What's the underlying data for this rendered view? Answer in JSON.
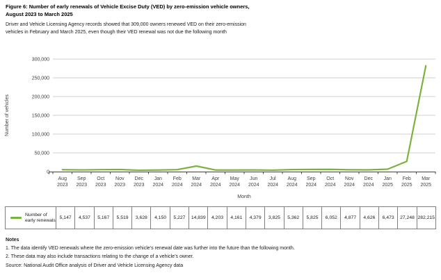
{
  "figure": {
    "title_line1": "Figure 6: Number of early renewals of Vehicle Excise Duty (VED) by zero-emission vehicle owners,",
    "title_line2": "August 2023 to March 2025",
    "subtitle_line1": "Driver and Vehicle Licensing Agency records showed that 309,000 owners renewed VED on their zero-emission",
    "subtitle_line2": "vehicles in February and March 2025, even though their VED renewal was not due the following month"
  },
  "chart_data": {
    "type": "line",
    "title": "Number of early renewals of Vehicle Excise Duty (VED) by zero-emission vehicle owners, August 2023 to March 2025",
    "categories": [
      "Aug 2023",
      "Sep 2023",
      "Oct 2023",
      "Nov 2023",
      "Dec 2023",
      "Jan 2024",
      "Feb 2024",
      "Mar 2024",
      "Apr 2024",
      "May 2024",
      "Jun 2024",
      "Jul 2024",
      "Aug 2024",
      "Sep 2024",
      "Oct 2024",
      "Nov 2024",
      "Dec 2024",
      "Jan 2025",
      "Feb 2025",
      "Mar 2025"
    ],
    "series": [
      {
        "name": "Number of early renewals",
        "values": [
          5147,
          4537,
          5167,
          5519,
          3628,
          4150,
          5227,
          14839,
          4203,
          4161,
          4379,
          3825,
          5362,
          5825,
          6052,
          4877,
          4626,
          6473,
          27248,
          282215
        ]
      }
    ],
    "xlabel": "Month",
    "ylabel": "Number of vehicles",
    "ylim": [
      0,
      300000
    ],
    "yticks": [
      0,
      50000,
      100000,
      150000,
      200000,
      250000,
      300000
    ],
    "ytick_labels": [
      "0",
      "50,000",
      "100,000",
      "150,000",
      "200,000",
      "250,000",
      "300,000"
    ],
    "grid": "horizontal",
    "legend_position": "table-below",
    "line_color": "#7ab33c",
    "gridline_color": "#cfcfcf",
    "axis_color": "#404040"
  },
  "legend_table": {
    "row_label_lines": [
      "Number of",
      "early renewals"
    ],
    "values": [
      "5,147",
      "4,537",
      "5,167",
      "5,519",
      "3,628",
      "4,150",
      "5,227",
      "14,839",
      "4,203",
      "4,161",
      "4,379",
      "3,825",
      "5,362",
      "5,825",
      "6,052",
      "4,877",
      "4,626",
      "6,473",
      "27,248",
      "282,215"
    ]
  },
  "notes": {
    "heading": "Notes",
    "items": [
      "1. The data identify VED renewals where the zero-emission vehicle’s renewal date was further into the future than the following month.",
      "2. These data may also include transactions relating to the change of a vehicle’s owner."
    ],
    "source": "Source: National Audit Office analysis of Driver and Vehicle Licensing Agency data"
  }
}
